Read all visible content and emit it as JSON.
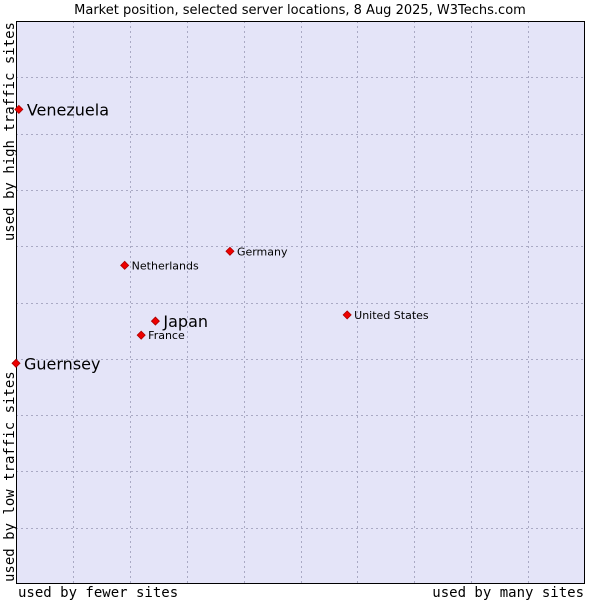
{
  "chart_data": {
    "type": "scatter",
    "title": "Market position, selected server locations, 8 Aug 2025, W3Techs.com",
    "xlabel_left": "used by fewer sites",
    "xlabel_right": "used by many sites",
    "ylabel_bottom": "used by low traffic sites",
    "ylabel_top": "used by high traffic sites",
    "xlim": [
      0,
      100
    ],
    "ylim": [
      0,
      100
    ],
    "grid": true,
    "colors": {
      "plot_background": "#e4e4f8",
      "grid": "#a9a9c4",
      "point": "#ee0000",
      "point_edge": "#aa0000"
    },
    "points": [
      {
        "name": "Venezuela",
        "x": 0.5,
        "y": 84.3,
        "emphasis": true
      },
      {
        "name": "Germany",
        "x": 37.6,
        "y": 59.1,
        "emphasis": false
      },
      {
        "name": "Netherlands",
        "x": 19.1,
        "y": 56.6,
        "emphasis": false
      },
      {
        "name": "United States",
        "x": 58.2,
        "y": 47.8,
        "emphasis": false
      },
      {
        "name": "Japan",
        "x": 24.5,
        "y": 46.7,
        "emphasis": true
      },
      {
        "name": "France",
        "x": 22.0,
        "y": 44.2,
        "emphasis": false
      },
      {
        "name": "Guernsey",
        "x": 0.0,
        "y": 39.2,
        "emphasis": true
      }
    ]
  }
}
